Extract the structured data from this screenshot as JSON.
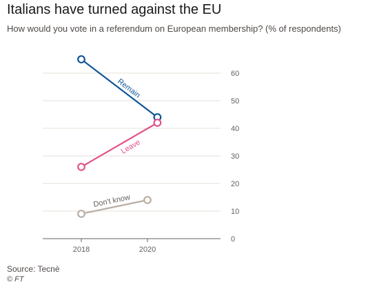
{
  "header": {
    "title": "Italians have turned against the EU",
    "subtitle": "How would you vote in a referendum on European membership? (% of respondents)"
  },
  "footer": {
    "source": "Source: Tecnè",
    "credit": "© FT"
  },
  "colors": {
    "remain": "#0f5499",
    "leave": "#e2528b",
    "dont_know": "#b9ada3",
    "grid": "#e6e0da",
    "axis": "#66605c"
  },
  "chart_data": {
    "type": "line",
    "title": "Italians have turned against the EU",
    "subtitle": "How would you vote in a referendum on European membership? (% of respondents)",
    "xlabel": "",
    "ylabel": "",
    "xlim": [
      2017.5,
      2022.5
    ],
    "ylim": [
      0,
      60
    ],
    "x_ticks": [
      "2018",
      "2020"
    ],
    "y_ticks": [
      "0",
      "10",
      "20",
      "30",
      "40",
      "50",
      "60"
    ],
    "y_axis_side": "right",
    "grid": true,
    "series": [
      {
        "key": "remain",
        "name": "Remain",
        "x": [
          2018,
          2020.3
        ],
        "y": [
          65,
          44
        ]
      },
      {
        "key": "leave",
        "name": "Leave",
        "x": [
          2018,
          2020.3
        ],
        "y": [
          26,
          42
        ]
      },
      {
        "key": "dont_know",
        "name": "Don't know",
        "x": [
          2018,
          2020
        ],
        "y": [
          9,
          14
        ]
      }
    ]
  }
}
